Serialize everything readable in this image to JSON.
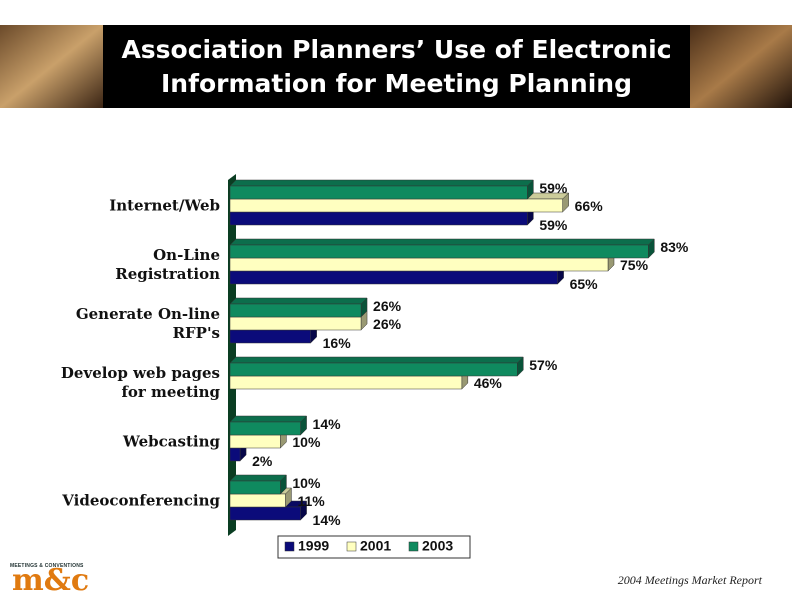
{
  "title": "Association Planners’ Use of Electronic\nInformation for Meeting Planning",
  "footer": "2004 Meetings Market Report",
  "logo": {
    "small_text": "MEETINGS & CONVENTIONS",
    "text": "m&c"
  },
  "chart_data": {
    "type": "bar",
    "orientation": "horizontal",
    "categories": [
      "Internet/Web",
      "On-Line\nRegistration",
      "Generate On-line\nRFP's",
      "Develop web pages\nfor meeting",
      "Webcasting",
      "Videoconferencing"
    ],
    "series": [
      {
        "name": "1999",
        "color": "#0b0b7a",
        "values": [
          59,
          65,
          16,
          null,
          2,
          14
        ],
        "value_labels": [
          "59%",
          "65%",
          "16%",
          null,
          "2%",
          "14%"
        ]
      },
      {
        "name": "2001",
        "color": "#ffffc0",
        "values": [
          66,
          75,
          26,
          46,
          10,
          11
        ],
        "value_labels": [
          "66%",
          "75%",
          "26%",
          "46%",
          "10%",
          "11%"
        ]
      },
      {
        "name": "2003",
        "color": "#0f8a5f",
        "values": [
          59,
          83,
          26,
          57,
          14,
          10
        ],
        "value_labels": [
          "59%",
          "83%",
          "26%",
          "57%",
          "14%",
          "10%"
        ]
      }
    ],
    "xlim": [
      0,
      100
    ],
    "legend": "bottom"
  }
}
